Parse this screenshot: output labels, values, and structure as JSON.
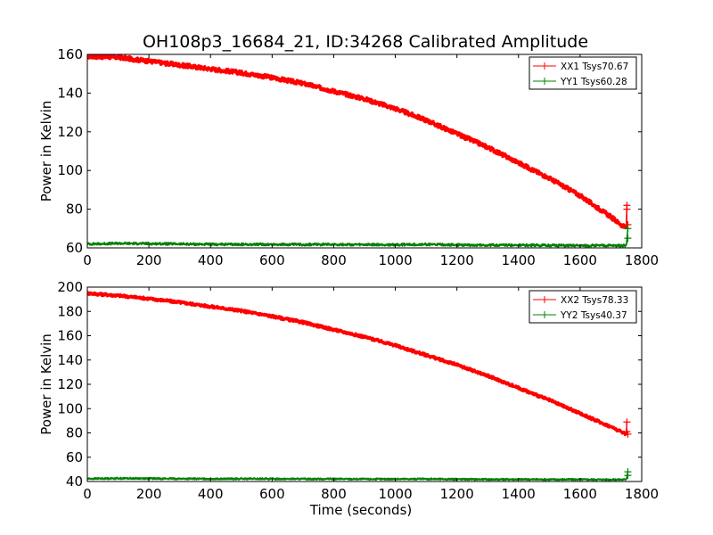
{
  "chart_data": [
    {
      "type": "line",
      "title": "OH108p3_16684_21, ID:34268 Calibrated Amplitude",
      "xlabel": "",
      "ylabel": "Power in Kelvin",
      "xlim": [
        0,
        1800
      ],
      "ylim": [
        60,
        160
      ],
      "xticks": [
        0,
        200,
        400,
        600,
        800,
        1000,
        1200,
        1400,
        1600,
        1800
      ],
      "yticks": [
        60,
        80,
        100,
        120,
        140,
        160
      ],
      "legend_position": "top-right",
      "series": [
        {
          "name": "XX1 Tsys70.67",
          "color": "#ff0000",
          "x": [
            0,
            100,
            200,
            300,
            400,
            500,
            600,
            700,
            800,
            900,
            1000,
            1100,
            1200,
            1300,
            1400,
            1500,
            1600,
            1700,
            1750
          ],
          "y": [
            159,
            158.5,
            156.5,
            154.5,
            152.5,
            150.5,
            148,
            145,
            141,
            137,
            132,
            126,
            119,
            112,
            104,
            96,
            87,
            76,
            70
          ],
          "outliers": [
            [
              1752,
              82
            ],
            [
              1752,
              80
            ],
            [
              1755,
              72
            ]
          ]
        },
        {
          "name": "YY1 Tsys60.28",
          "color": "#008000",
          "x": [
            0,
            100,
            200,
            300,
            400,
            500,
            600,
            700,
            800,
            900,
            1000,
            1100,
            1200,
            1300,
            1400,
            1500,
            1600,
            1700,
            1750
          ],
          "y": [
            62,
            62.3,
            62.2,
            62,
            61.8,
            61.8,
            61.8,
            61.7,
            61.8,
            61.6,
            61.6,
            61.8,
            61.5,
            61.4,
            61.4,
            61.3,
            61.2,
            61.2,
            61.2
          ],
          "outliers": [
            [
              1755,
              70
            ],
            [
              1755,
              65
            ]
          ]
        }
      ]
    },
    {
      "type": "line",
      "title": "",
      "xlabel": "Time (seconds)",
      "ylabel": "Power in Kelvin",
      "xlim": [
        0,
        1800
      ],
      "ylim": [
        40,
        200
      ],
      "xticks": [
        0,
        200,
        400,
        600,
        800,
        1000,
        1200,
        1400,
        1600,
        1800
      ],
      "yticks": [
        40,
        60,
        80,
        100,
        120,
        140,
        160,
        180,
        200
      ],
      "legend_position": "top-right",
      "series": [
        {
          "name": "XX2 Tsys78.33",
          "color": "#ff0000",
          "x": [
            0,
            100,
            200,
            300,
            400,
            500,
            600,
            700,
            800,
            900,
            1000,
            1100,
            1200,
            1300,
            1400,
            1500,
            1600,
            1700,
            1750
          ],
          "y": [
            195,
            193,
            190.5,
            187.5,
            184,
            180.5,
            176,
            171,
            165,
            159,
            152,
            144,
            136,
            127,
            117,
            107,
            96,
            85,
            79
          ],
          "outliers": [
            [
              1752,
              89
            ],
            [
              1752,
              81
            ],
            [
              1755,
              79
            ]
          ]
        },
        {
          "name": "YY2 Tsys40.37",
          "color": "#008000",
          "x": [
            0,
            100,
            200,
            300,
            400,
            500,
            600,
            700,
            800,
            900,
            1000,
            1100,
            1200,
            1300,
            1400,
            1500,
            1600,
            1700,
            1750
          ],
          "y": [
            42.3,
            42.6,
            42.5,
            42.3,
            42.2,
            42.2,
            42.2,
            42.1,
            42.1,
            42,
            42,
            42.1,
            41.9,
            41.8,
            41.8,
            41.7,
            41.7,
            41.6,
            41.6
          ],
          "outliers": [
            [
              1755,
              48
            ],
            [
              1755,
              45
            ]
          ]
        }
      ]
    }
  ]
}
